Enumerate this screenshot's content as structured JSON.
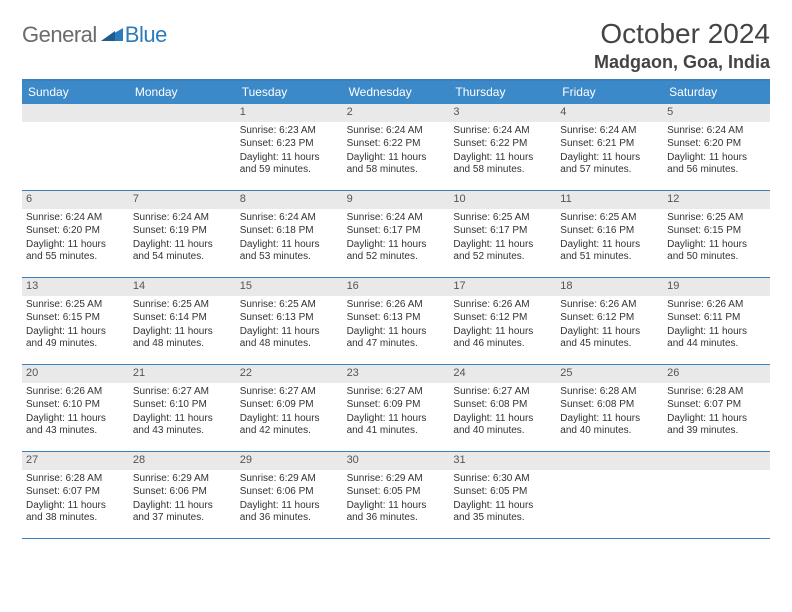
{
  "brand": {
    "a": "General",
    "b": "Blue"
  },
  "title": "October 2024",
  "location": "Madgaon, Goa, India",
  "colors": {
    "header_bar": "#3b89c9",
    "rule": "#3b7fbf",
    "daynum_bg": "#e9e9e9",
    "text": "#3a3a3a",
    "brand_gray": "#6b6b6b",
    "brand_blue": "#2b7bbd"
  },
  "dow": [
    "Sunday",
    "Monday",
    "Tuesday",
    "Wednesday",
    "Thursday",
    "Friday",
    "Saturday"
  ],
  "weeks": [
    [
      null,
      null,
      {
        "n": "1",
        "sr": "6:23 AM",
        "ss": "6:23 PM",
        "dl": "11 hours and 59 minutes."
      },
      {
        "n": "2",
        "sr": "6:24 AM",
        "ss": "6:22 PM",
        "dl": "11 hours and 58 minutes."
      },
      {
        "n": "3",
        "sr": "6:24 AM",
        "ss": "6:22 PM",
        "dl": "11 hours and 58 minutes."
      },
      {
        "n": "4",
        "sr": "6:24 AM",
        "ss": "6:21 PM",
        "dl": "11 hours and 57 minutes."
      },
      {
        "n": "5",
        "sr": "6:24 AM",
        "ss": "6:20 PM",
        "dl": "11 hours and 56 minutes."
      }
    ],
    [
      {
        "n": "6",
        "sr": "6:24 AM",
        "ss": "6:20 PM",
        "dl": "11 hours and 55 minutes."
      },
      {
        "n": "7",
        "sr": "6:24 AM",
        "ss": "6:19 PM",
        "dl": "11 hours and 54 minutes."
      },
      {
        "n": "8",
        "sr": "6:24 AM",
        "ss": "6:18 PM",
        "dl": "11 hours and 53 minutes."
      },
      {
        "n": "9",
        "sr": "6:24 AM",
        "ss": "6:17 PM",
        "dl": "11 hours and 52 minutes."
      },
      {
        "n": "10",
        "sr": "6:25 AM",
        "ss": "6:17 PM",
        "dl": "11 hours and 52 minutes."
      },
      {
        "n": "11",
        "sr": "6:25 AM",
        "ss": "6:16 PM",
        "dl": "11 hours and 51 minutes."
      },
      {
        "n": "12",
        "sr": "6:25 AM",
        "ss": "6:15 PM",
        "dl": "11 hours and 50 minutes."
      }
    ],
    [
      {
        "n": "13",
        "sr": "6:25 AM",
        "ss": "6:15 PM",
        "dl": "11 hours and 49 minutes."
      },
      {
        "n": "14",
        "sr": "6:25 AM",
        "ss": "6:14 PM",
        "dl": "11 hours and 48 minutes."
      },
      {
        "n": "15",
        "sr": "6:25 AM",
        "ss": "6:13 PM",
        "dl": "11 hours and 48 minutes."
      },
      {
        "n": "16",
        "sr": "6:26 AM",
        "ss": "6:13 PM",
        "dl": "11 hours and 47 minutes."
      },
      {
        "n": "17",
        "sr": "6:26 AM",
        "ss": "6:12 PM",
        "dl": "11 hours and 46 minutes."
      },
      {
        "n": "18",
        "sr": "6:26 AM",
        "ss": "6:12 PM",
        "dl": "11 hours and 45 minutes."
      },
      {
        "n": "19",
        "sr": "6:26 AM",
        "ss": "6:11 PM",
        "dl": "11 hours and 44 minutes."
      }
    ],
    [
      {
        "n": "20",
        "sr": "6:26 AM",
        "ss": "6:10 PM",
        "dl": "11 hours and 43 minutes."
      },
      {
        "n": "21",
        "sr": "6:27 AM",
        "ss": "6:10 PM",
        "dl": "11 hours and 43 minutes."
      },
      {
        "n": "22",
        "sr": "6:27 AM",
        "ss": "6:09 PM",
        "dl": "11 hours and 42 minutes."
      },
      {
        "n": "23",
        "sr": "6:27 AM",
        "ss": "6:09 PM",
        "dl": "11 hours and 41 minutes."
      },
      {
        "n": "24",
        "sr": "6:27 AM",
        "ss": "6:08 PM",
        "dl": "11 hours and 40 minutes."
      },
      {
        "n": "25",
        "sr": "6:28 AM",
        "ss": "6:08 PM",
        "dl": "11 hours and 40 minutes."
      },
      {
        "n": "26",
        "sr": "6:28 AM",
        "ss": "6:07 PM",
        "dl": "11 hours and 39 minutes."
      }
    ],
    [
      {
        "n": "27",
        "sr": "6:28 AM",
        "ss": "6:07 PM",
        "dl": "11 hours and 38 minutes."
      },
      {
        "n": "28",
        "sr": "6:29 AM",
        "ss": "6:06 PM",
        "dl": "11 hours and 37 minutes."
      },
      {
        "n": "29",
        "sr": "6:29 AM",
        "ss": "6:06 PM",
        "dl": "11 hours and 36 minutes."
      },
      {
        "n": "30",
        "sr": "6:29 AM",
        "ss": "6:05 PM",
        "dl": "11 hours and 36 minutes."
      },
      {
        "n": "31",
        "sr": "6:30 AM",
        "ss": "6:05 PM",
        "dl": "11 hours and 35 minutes."
      },
      null,
      null
    ]
  ],
  "labels": {
    "sunrise": "Sunrise:",
    "sunset": "Sunset:",
    "daylight": "Daylight:"
  }
}
